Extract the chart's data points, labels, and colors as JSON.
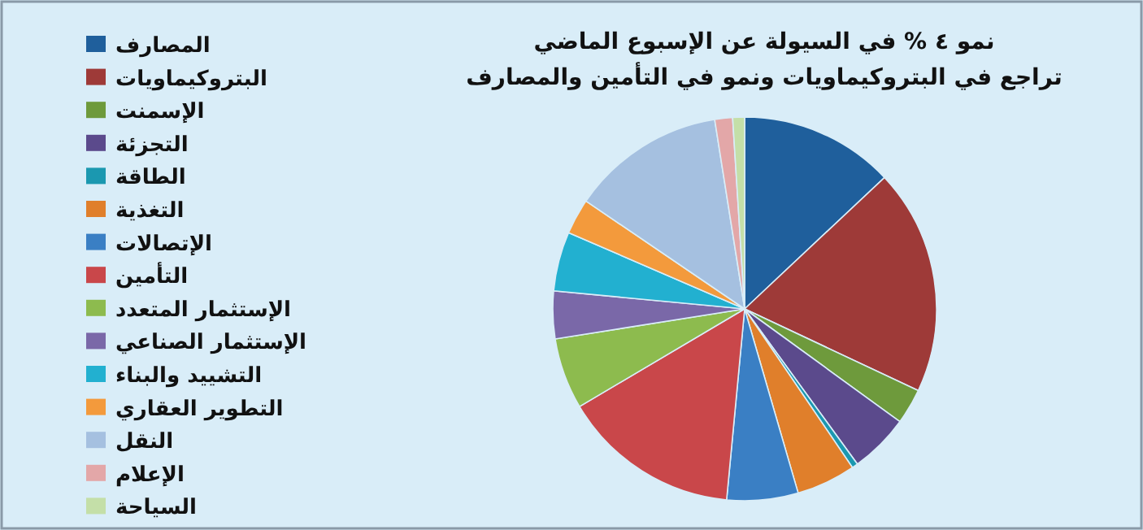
{
  "chart_data": {
    "type": "pie",
    "title": "نمو ٤ % في السيولة عن الإسبوع الماضي",
    "subtitle": "تراجع في البتروكيماويات ونمو في التأمين والمصارف",
    "categories": [
      "المصارف",
      "البتروكيماويات",
      "الإسمنت",
      "التجزئة",
      "الطاقة",
      "التغذية",
      "الإتصالات",
      "التأمين",
      "الإستثمار المتعدد",
      "الإستثمار الصناعي",
      "التشييد والبناء",
      "التطوير العقاري",
      "النقل",
      "الإعلام",
      "السياحة"
    ],
    "values": [
      13,
      19,
      3,
      5,
      0.5,
      5,
      6,
      15,
      6,
      4,
      5,
      3,
      13,
      1.5,
      1
    ],
    "colors": [
      "#1f5f9c",
      "#9e3a38",
      "#6e9a3c",
      "#5b4a8c",
      "#1b98b0",
      "#e07f2b",
      "#3a7fc4",
      "#c9474a",
      "#8dbb4e",
      "#7a68a8",
      "#22b0d0",
      "#f39a3c",
      "#a5c0e0",
      "#e3a7a8",
      "#c4dfa8"
    ],
    "legend": "left"
  }
}
